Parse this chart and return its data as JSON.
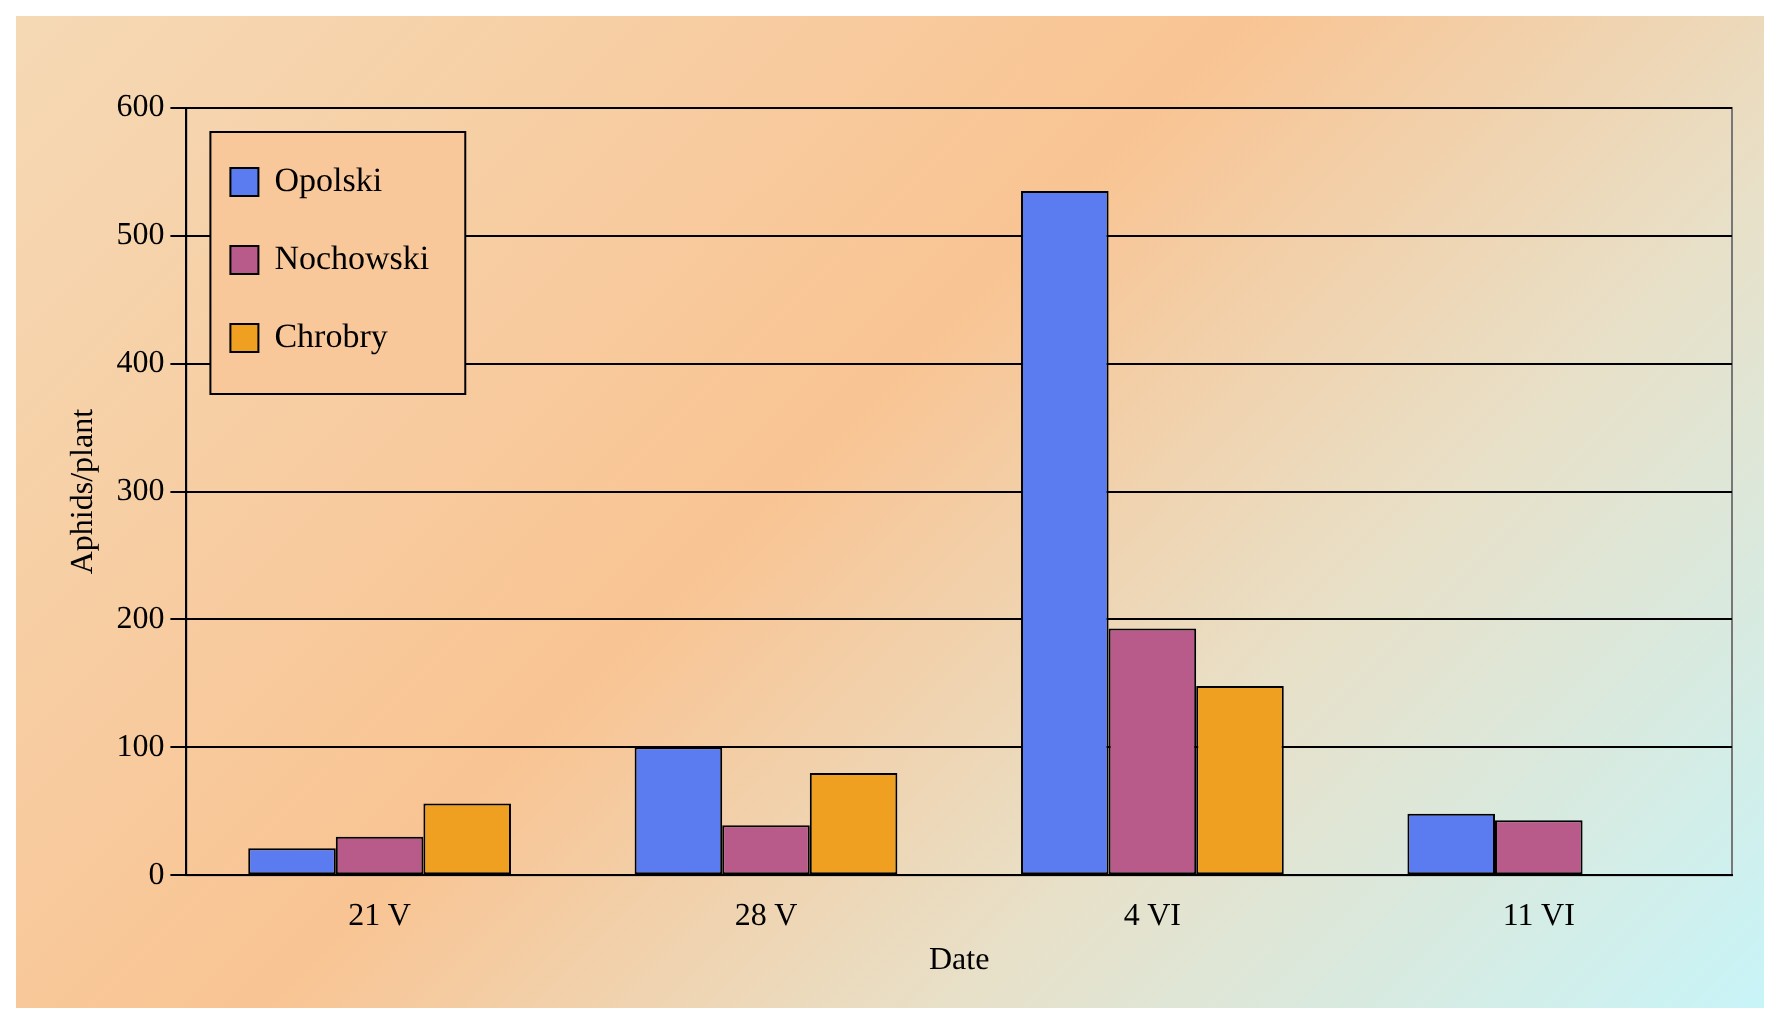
{
  "chart_data": {
    "type": "bar",
    "xlabel": "Date",
    "ylabel": "Aphids/plant",
    "categories": [
      "21 V",
      "28 V",
      "4 VI",
      "11 VI"
    ],
    "series": [
      {
        "name": "Opolski",
        "color": "#5a7cf0",
        "values": [
          21,
          100,
          535,
          48
        ]
      },
      {
        "name": "Nochowski",
        "color": "#b85a8a",
        "values": [
          30,
          39,
          193,
          43
        ]
      },
      {
        "name": "Chrobry",
        "color": "#f0a020",
        "values": [
          56,
          80,
          148,
          null
        ]
      }
    ],
    "ylim": [
      0,
      600
    ],
    "yticks": [
      0,
      100,
      200,
      300,
      400,
      500,
      600
    ],
    "grid": "y",
    "legend": "top left"
  }
}
